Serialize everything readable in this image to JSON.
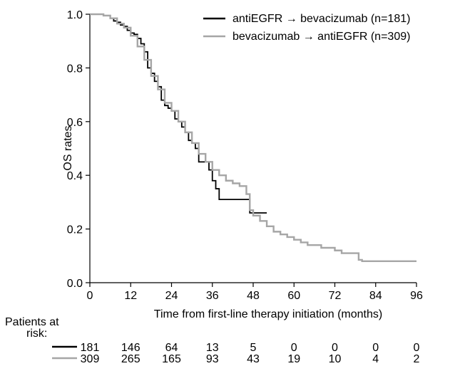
{
  "chart_data": {
    "type": "line",
    "subtype": "kaplan-meier",
    "title": "",
    "xlabel": "Time from first-line therapy initiation (months)",
    "ylabel": "OS rates",
    "xlim": [
      0,
      96
    ],
    "ylim": [
      0,
      1.0
    ],
    "x_ticks": [
      "0",
      "12",
      "24",
      "36",
      "48",
      "60",
      "72",
      "84",
      "96"
    ],
    "y_ticks": [
      "0.0",
      "0.2",
      "0.4",
      "0.6",
      "0.8",
      "1.0"
    ],
    "grid": false,
    "legend_position": "top-right",
    "series": [
      {
        "name": "antiEGFR → bevacizumab (n=181)",
        "color": "#000000",
        "x": [
          0,
          4,
          6,
          7,
          8,
          9,
          10,
          11,
          12,
          13,
          14,
          15,
          16,
          17,
          18,
          19,
          20,
          21,
          22,
          23,
          24,
          25,
          26,
          27,
          28,
          29,
          30,
          31,
          32,
          33,
          34,
          35,
          36,
          37,
          38,
          39,
          40,
          42,
          44,
          46,
          47,
          48,
          50,
          52
        ],
        "y": [
          1.0,
          0.995,
          0.985,
          0.975,
          0.97,
          0.96,
          0.955,
          0.94,
          0.93,
          0.925,
          0.91,
          0.89,
          0.86,
          0.8,
          0.78,
          0.75,
          0.73,
          0.68,
          0.66,
          0.65,
          0.64,
          0.61,
          0.6,
          0.58,
          0.56,
          0.53,
          0.52,
          0.5,
          0.45,
          0.45,
          0.45,
          0.42,
          0.38,
          0.35,
          0.31,
          0.31,
          0.31,
          0.31,
          0.31,
          0.31,
          0.26,
          0.26,
          0.26,
          0.26
        ]
      },
      {
        "name": "bevacizumab → antiEGFR (n=309)",
        "color": "#a6a6a6",
        "x": [
          0,
          4,
          6,
          8,
          10,
          12,
          14,
          16,
          18,
          20,
          22,
          24,
          26,
          28,
          30,
          32,
          34,
          36,
          38,
          40,
          42,
          44,
          46,
          47,
          48,
          50,
          52,
          54,
          56,
          58,
          60,
          62,
          64,
          66,
          68,
          70,
          72,
          74,
          76,
          78,
          79,
          80,
          84,
          88,
          92,
          96
        ],
        "y": [
          1.0,
          0.995,
          0.985,
          0.965,
          0.95,
          0.92,
          0.88,
          0.83,
          0.77,
          0.72,
          0.67,
          0.64,
          0.6,
          0.56,
          0.52,
          0.48,
          0.45,
          0.42,
          0.4,
          0.38,
          0.37,
          0.36,
          0.33,
          0.27,
          0.25,
          0.23,
          0.21,
          0.19,
          0.18,
          0.17,
          0.16,
          0.15,
          0.14,
          0.14,
          0.13,
          0.13,
          0.12,
          0.11,
          0.11,
          0.11,
          0.085,
          0.08,
          0.08,
          0.08,
          0.08,
          0.08
        ]
      }
    ]
  },
  "risk_table": {
    "title": "Patients at risk:",
    "rows": [
      {
        "color": "#000000",
        "values": [
          "181",
          "146",
          "64",
          "13",
          "5",
          "0",
          "0",
          "0",
          "0"
        ]
      },
      {
        "color": "#a6a6a6",
        "values": [
          "309",
          "265",
          "165",
          "93",
          "43",
          "19",
          "10",
          "4",
          "2"
        ]
      }
    ]
  }
}
